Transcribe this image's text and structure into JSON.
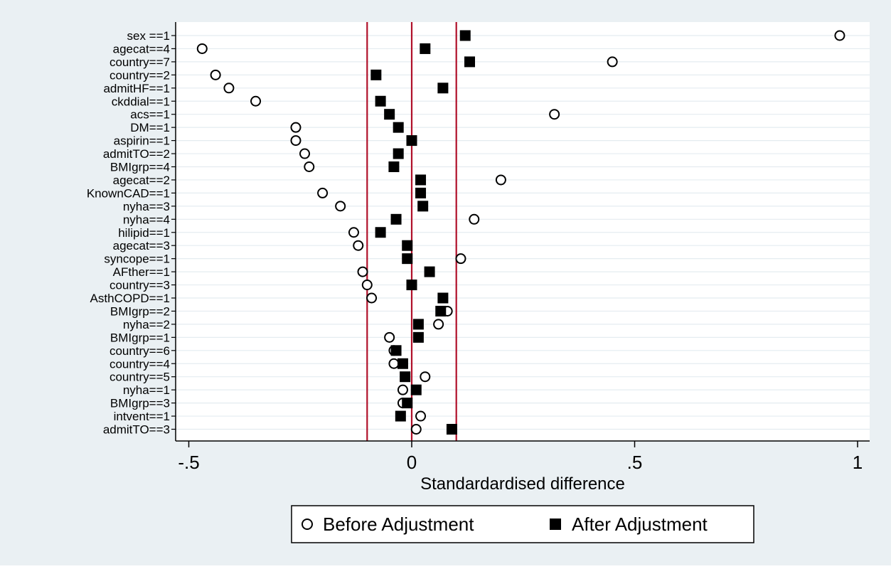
{
  "chart_data": {
    "type": "scatter",
    "title": "",
    "xlabel": "Standardardised difference",
    "ylabel": "",
    "xlim": [
      -0.53,
      1.03
    ],
    "xticks": [
      -0.5,
      0,
      0.5,
      1
    ],
    "xtick_labels": [
      "-.5",
      "0",
      ".5",
      "1"
    ],
    "reference_lines": [
      -0.1,
      0,
      0.1
    ],
    "grid": "horizontal",
    "legend_position": "bottom",
    "categories": [
      "sex ==1",
      "agecat==4",
      "country==7",
      "country==2",
      "admitHF==1",
      "ckddial==1",
      "acs==1",
      "DM==1",
      "aspirin==1",
      "admitTO==2",
      "BMIgrp==4",
      "agecat==2",
      "KnownCAD==1",
      "nyha==3",
      "nyha==4",
      "hilipid==1",
      "agecat==3",
      "syncope==1",
      "AFther==1",
      "country==3",
      "AsthCOPD==1",
      "BMIgrp==2",
      "nyha==2",
      "BMIgrp==1",
      "country==6",
      "country==4",
      "country==5",
      "nyha==1",
      "BMIgrp==3",
      "intvent==1",
      "admitTO==3"
    ],
    "series": [
      {
        "name": "Before Adjustment",
        "marker": "hollow-circle",
        "values": [
          0.96,
          -0.47,
          0.45,
          -0.44,
          -0.41,
          -0.35,
          0.32,
          -0.26,
          -0.26,
          -0.24,
          -0.23,
          0.2,
          -0.2,
          -0.16,
          0.14,
          -0.13,
          -0.12,
          0.11,
          -0.11,
          -0.1,
          -0.09,
          0.08,
          0.06,
          -0.05,
          -0.04,
          -0.04,
          0.03,
          -0.02,
          -0.02,
          0.02,
          0.01
        ]
      },
      {
        "name": "After Adjustment",
        "marker": "filled-square",
        "values": [
          0.12,
          0.03,
          0.13,
          -0.08,
          0.07,
          -0.07,
          -0.05,
          -0.03,
          0.0,
          -0.03,
          -0.04,
          0.02,
          0.02,
          0.025,
          -0.035,
          -0.07,
          -0.01,
          -0.01,
          0.04,
          0.0,
          0.07,
          0.065,
          0.015,
          0.015,
          -0.035,
          -0.02,
          -0.015,
          0.01,
          -0.01,
          -0.025,
          0.09
        ]
      }
    ]
  },
  "colors": {
    "outer_background": "#eaf0f3",
    "plot_background": "#ffffff",
    "reference_line": "#b0102a",
    "gridline": "#e4ecf0",
    "marker": "#000000"
  },
  "legend": {
    "before_label": "Before Adjustment",
    "after_label": "After Adjustment"
  }
}
